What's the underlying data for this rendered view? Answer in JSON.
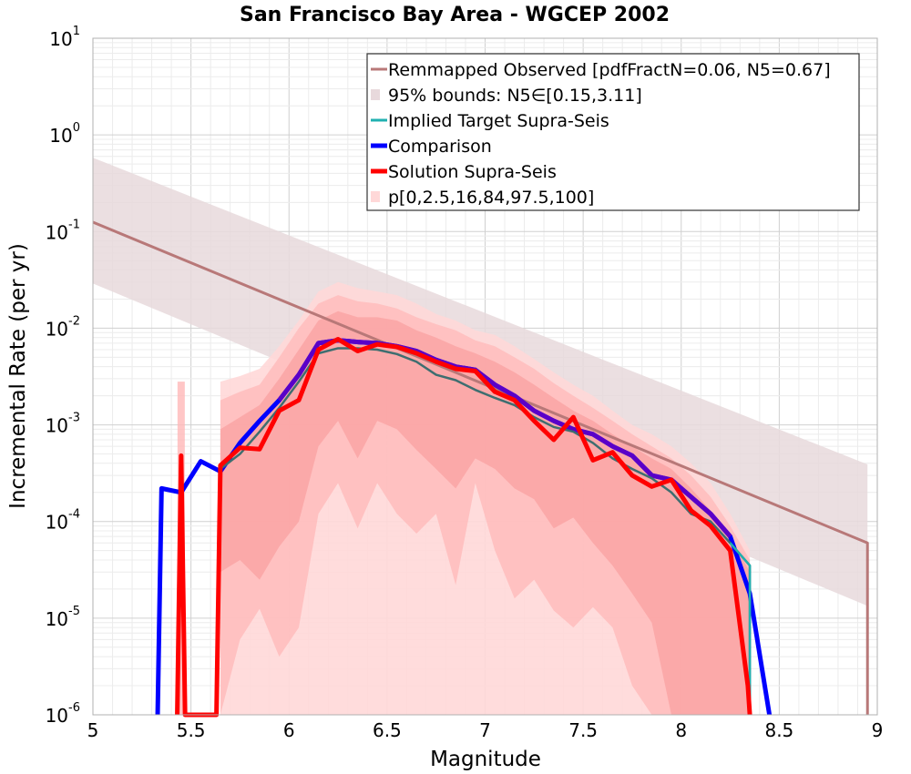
{
  "chart_data": {
    "type": "line",
    "title": "San Francisco Bay Area - WGCEP 2002",
    "xlabel": "Magnitude",
    "ylabel": "Incremental Rate (per yr)",
    "xlim": [
      5,
      9
    ],
    "ylim": [
      1e-06,
      10
    ],
    "yscale": "log",
    "grid": true,
    "legend_placement": "top-right",
    "x_ticks": [
      "5",
      "5.5",
      "6",
      "6.5",
      "7",
      "7.5",
      "8",
      "8.5",
      "9"
    ],
    "y_ticks": [
      {
        "base": "10",
        "exp": "1",
        "value": 10
      },
      {
        "base": "10",
        "exp": "0",
        "value": 1
      },
      {
        "base": "10",
        "exp": "-1",
        "value": 0.1
      },
      {
        "base": "10",
        "exp": "-2",
        "value": 0.01
      },
      {
        "base": "10",
        "exp": "-3",
        "value": 0.001
      },
      {
        "base": "10",
        "exp": "-4",
        "value": 0.0001
      },
      {
        "base": "10",
        "exp": "-5",
        "value": 1e-05
      },
      {
        "base": "10",
        "exp": "-6",
        "value": 1e-06
      }
    ],
    "colors": {
      "observed": "#b87878",
      "observed_bounds": "#e8d9dc",
      "implied": "#20b0b0",
      "implied_dark": "#3e6e70",
      "comparison": "#0000ff",
      "solution": "#ff0000",
      "band_outer": "#ffd8d8",
      "band_mid": "#ffb8b8",
      "band_inner": "#fa9e9e",
      "overlap": "#5a00c8"
    },
    "series": [
      {
        "name": "Remmapped Observed [pdfFractN=0.06, N5=0.67]",
        "kind": "line",
        "x": [
          5.0,
          8.95,
          8.95
        ],
        "y": [
          0.125,
          6e-05,
          1e-06
        ]
      },
      {
        "name": "95% bounds: N5∈[0.15,3.11]",
        "kind": "band",
        "x": [
          5.0,
          8.95
        ],
        "lower": [
          0.029,
          1.34e-05
        ],
        "upper": [
          0.58,
          0.00039
        ]
      },
      {
        "name": "Implied Target Supra-Seis",
        "kind": "line",
        "x": [
          5.65,
          5.75,
          5.85,
          5.95,
          6.05,
          6.15,
          6.25,
          6.35,
          6.45,
          6.55,
          6.65,
          6.75,
          6.85,
          6.95,
          7.05,
          7.15,
          7.25,
          7.35,
          7.45,
          7.55,
          7.65,
          7.75,
          7.85,
          7.95,
          8.05,
          8.15,
          8.25,
          8.35,
          8.35
        ],
        "y": [
          0.00035,
          0.0005,
          0.00085,
          0.0015,
          0.0028,
          0.0055,
          0.0062,
          0.0062,
          0.006,
          0.0054,
          0.0045,
          0.0033,
          0.0029,
          0.0023,
          0.0019,
          0.0016,
          0.0012,
          0.00095,
          0.00085,
          0.00065,
          0.00045,
          0.00035,
          0.00028,
          0.0002,
          0.00012,
          0.0001,
          6e-05,
          3.5e-05,
          1e-06
        ]
      },
      {
        "name": "Comparison",
        "kind": "line",
        "x": [
          5.33,
          5.35,
          5.45,
          5.55,
          5.65,
          5.75,
          5.85,
          5.95,
          6.05,
          6.15,
          6.25,
          6.35,
          6.45,
          6.55,
          6.65,
          6.75,
          6.85,
          6.95,
          7.05,
          7.15,
          7.25,
          7.35,
          7.45,
          7.55,
          7.65,
          7.75,
          7.85,
          7.95,
          8.05,
          8.15,
          8.25,
          8.35,
          8.45
        ],
        "y": [
          1e-06,
          0.00022,
          0.0002,
          0.00042,
          0.00033,
          0.00065,
          0.0011,
          0.0018,
          0.0033,
          0.007,
          0.0075,
          0.0072,
          0.007,
          0.0065,
          0.0058,
          0.0047,
          0.004,
          0.0037,
          0.0026,
          0.002,
          0.0014,
          0.0011,
          0.0009,
          0.0008,
          0.0006,
          0.00048,
          0.0003,
          0.00027,
          0.00018,
          0.00012,
          7e-05,
          1.8e-05,
          1e-06
        ]
      },
      {
        "name": "Solution Supra-Seis",
        "kind": "line",
        "x": [
          5.43,
          5.45,
          5.47,
          5.63,
          5.65,
          5.75,
          5.85,
          5.95,
          6.05,
          6.15,
          6.25,
          6.35,
          6.45,
          6.55,
          6.65,
          6.75,
          6.85,
          6.95,
          7.05,
          7.15,
          7.25,
          7.35,
          7.45,
          7.55,
          7.65,
          7.75,
          7.85,
          7.95,
          8.05,
          8.15,
          8.25,
          8.34,
          8.35
        ],
        "y": [
          1e-06,
          0.00048,
          1e-06,
          1e-06,
          0.00038,
          0.00058,
          0.00056,
          0.0014,
          0.0018,
          0.006,
          0.0077,
          0.0058,
          0.0068,
          0.0064,
          0.0055,
          0.0045,
          0.0038,
          0.0036,
          0.0022,
          0.0018,
          0.0011,
          0.0007,
          0.0012,
          0.00043,
          0.00052,
          0.0003,
          0.00023,
          0.00027,
          0.00013,
          9e-05,
          5e-05,
          2e-06,
          1e-06
        ]
      },
      {
        "name": "p[0,2.5,16,84,97.5,100]",
        "kind": "band",
        "x": [
          5.65,
          5.75,
          5.85,
          5.95,
          6.05,
          6.15,
          6.25,
          6.35,
          6.45,
          6.55,
          6.65,
          6.75,
          6.85,
          6.95,
          7.05,
          7.15,
          7.25,
          7.35,
          7.45,
          7.55,
          7.65,
          7.75,
          7.85,
          7.95,
          8.05,
          8.15,
          8.25,
          8.35
        ],
        "outer_lower": [
          1e-06,
          1e-06,
          1e-06,
          1e-06,
          1e-06,
          1e-06,
          1e-06,
          1e-06,
          1e-06,
          1e-06,
          1e-06,
          1e-06,
          1e-06,
          1e-06,
          1e-06,
          1e-06,
          1e-06,
          1e-06,
          1e-06,
          1e-06,
          1e-06,
          1e-06,
          1e-06,
          1e-06,
          1e-06,
          1e-06,
          1e-06,
          1e-06
        ],
        "outer_upper": [
          0.0028,
          0.0032,
          0.0038,
          0.0065,
          0.012,
          0.024,
          0.03,
          0.026,
          0.024,
          0.022,
          0.018,
          0.014,
          0.012,
          0.0095,
          0.0085,
          0.0065,
          0.0048,
          0.0035,
          0.0026,
          0.002,
          0.0014,
          0.001,
          0.0008,
          0.0006,
          0.0004,
          0.00025,
          0.00012,
          5e-05
        ],
        "p2_5": [
          1e-06,
          6e-06,
          1.25e-05,
          4e-06,
          8e-06,
          0.00012,
          0.00025,
          8.5e-05,
          0.00025,
          0.00012,
          7.5e-05,
          0.00012,
          2.2e-05,
          0.00025,
          5e-05,
          1.6e-05,
          2.5e-05,
          1.2e-05,
          8e-06,
          1.3e-05,
          8e-06,
          2e-06,
          1e-06,
          1e-06,
          1e-06,
          1e-06,
          1e-06,
          1e-06
        ],
        "p97_5": [
          0.0018,
          0.0022,
          0.0026,
          0.005,
          0.01,
          0.018,
          0.022,
          0.019,
          0.018,
          0.016,
          0.013,
          0.011,
          0.0095,
          0.0075,
          0.0065,
          0.005,
          0.0038,
          0.0027,
          0.002,
          0.0015,
          0.0011,
          0.0008,
          0.0006,
          0.00045,
          0.0003,
          0.00018,
          9e-05,
          4e-05
        ],
        "p16": [
          3e-05,
          4e-05,
          2.5e-05,
          5.5e-05,
          0.0001,
          0.0006,
          0.0011,
          0.00045,
          0.0011,
          0.0009,
          0.00055,
          0.00035,
          0.00022,
          0.00045,
          0.00035,
          0.00022,
          0.00017,
          8.5e-05,
          0.00011,
          6e-05,
          3.5e-05,
          1.8e-05,
          9e-06,
          1e-06,
          1e-06,
          1e-06,
          1e-06,
          1e-06
        ],
        "p84": [
          0.0009,
          0.0012,
          0.0016,
          0.003,
          0.006,
          0.012,
          0.015,
          0.013,
          0.013,
          0.012,
          0.0095,
          0.008,
          0.0065,
          0.0055,
          0.0045,
          0.0035,
          0.0026,
          0.0019,
          0.0014,
          0.0011,
          0.0008,
          0.0006,
          0.00045,
          0.00035,
          0.00022,
          0.00013,
          7e-05,
          3e-05
        ]
      }
    ],
    "annotations": [
      {
        "name": "spike-m545",
        "x": 5.45,
        "band_upper": 0.0028
      }
    ]
  }
}
